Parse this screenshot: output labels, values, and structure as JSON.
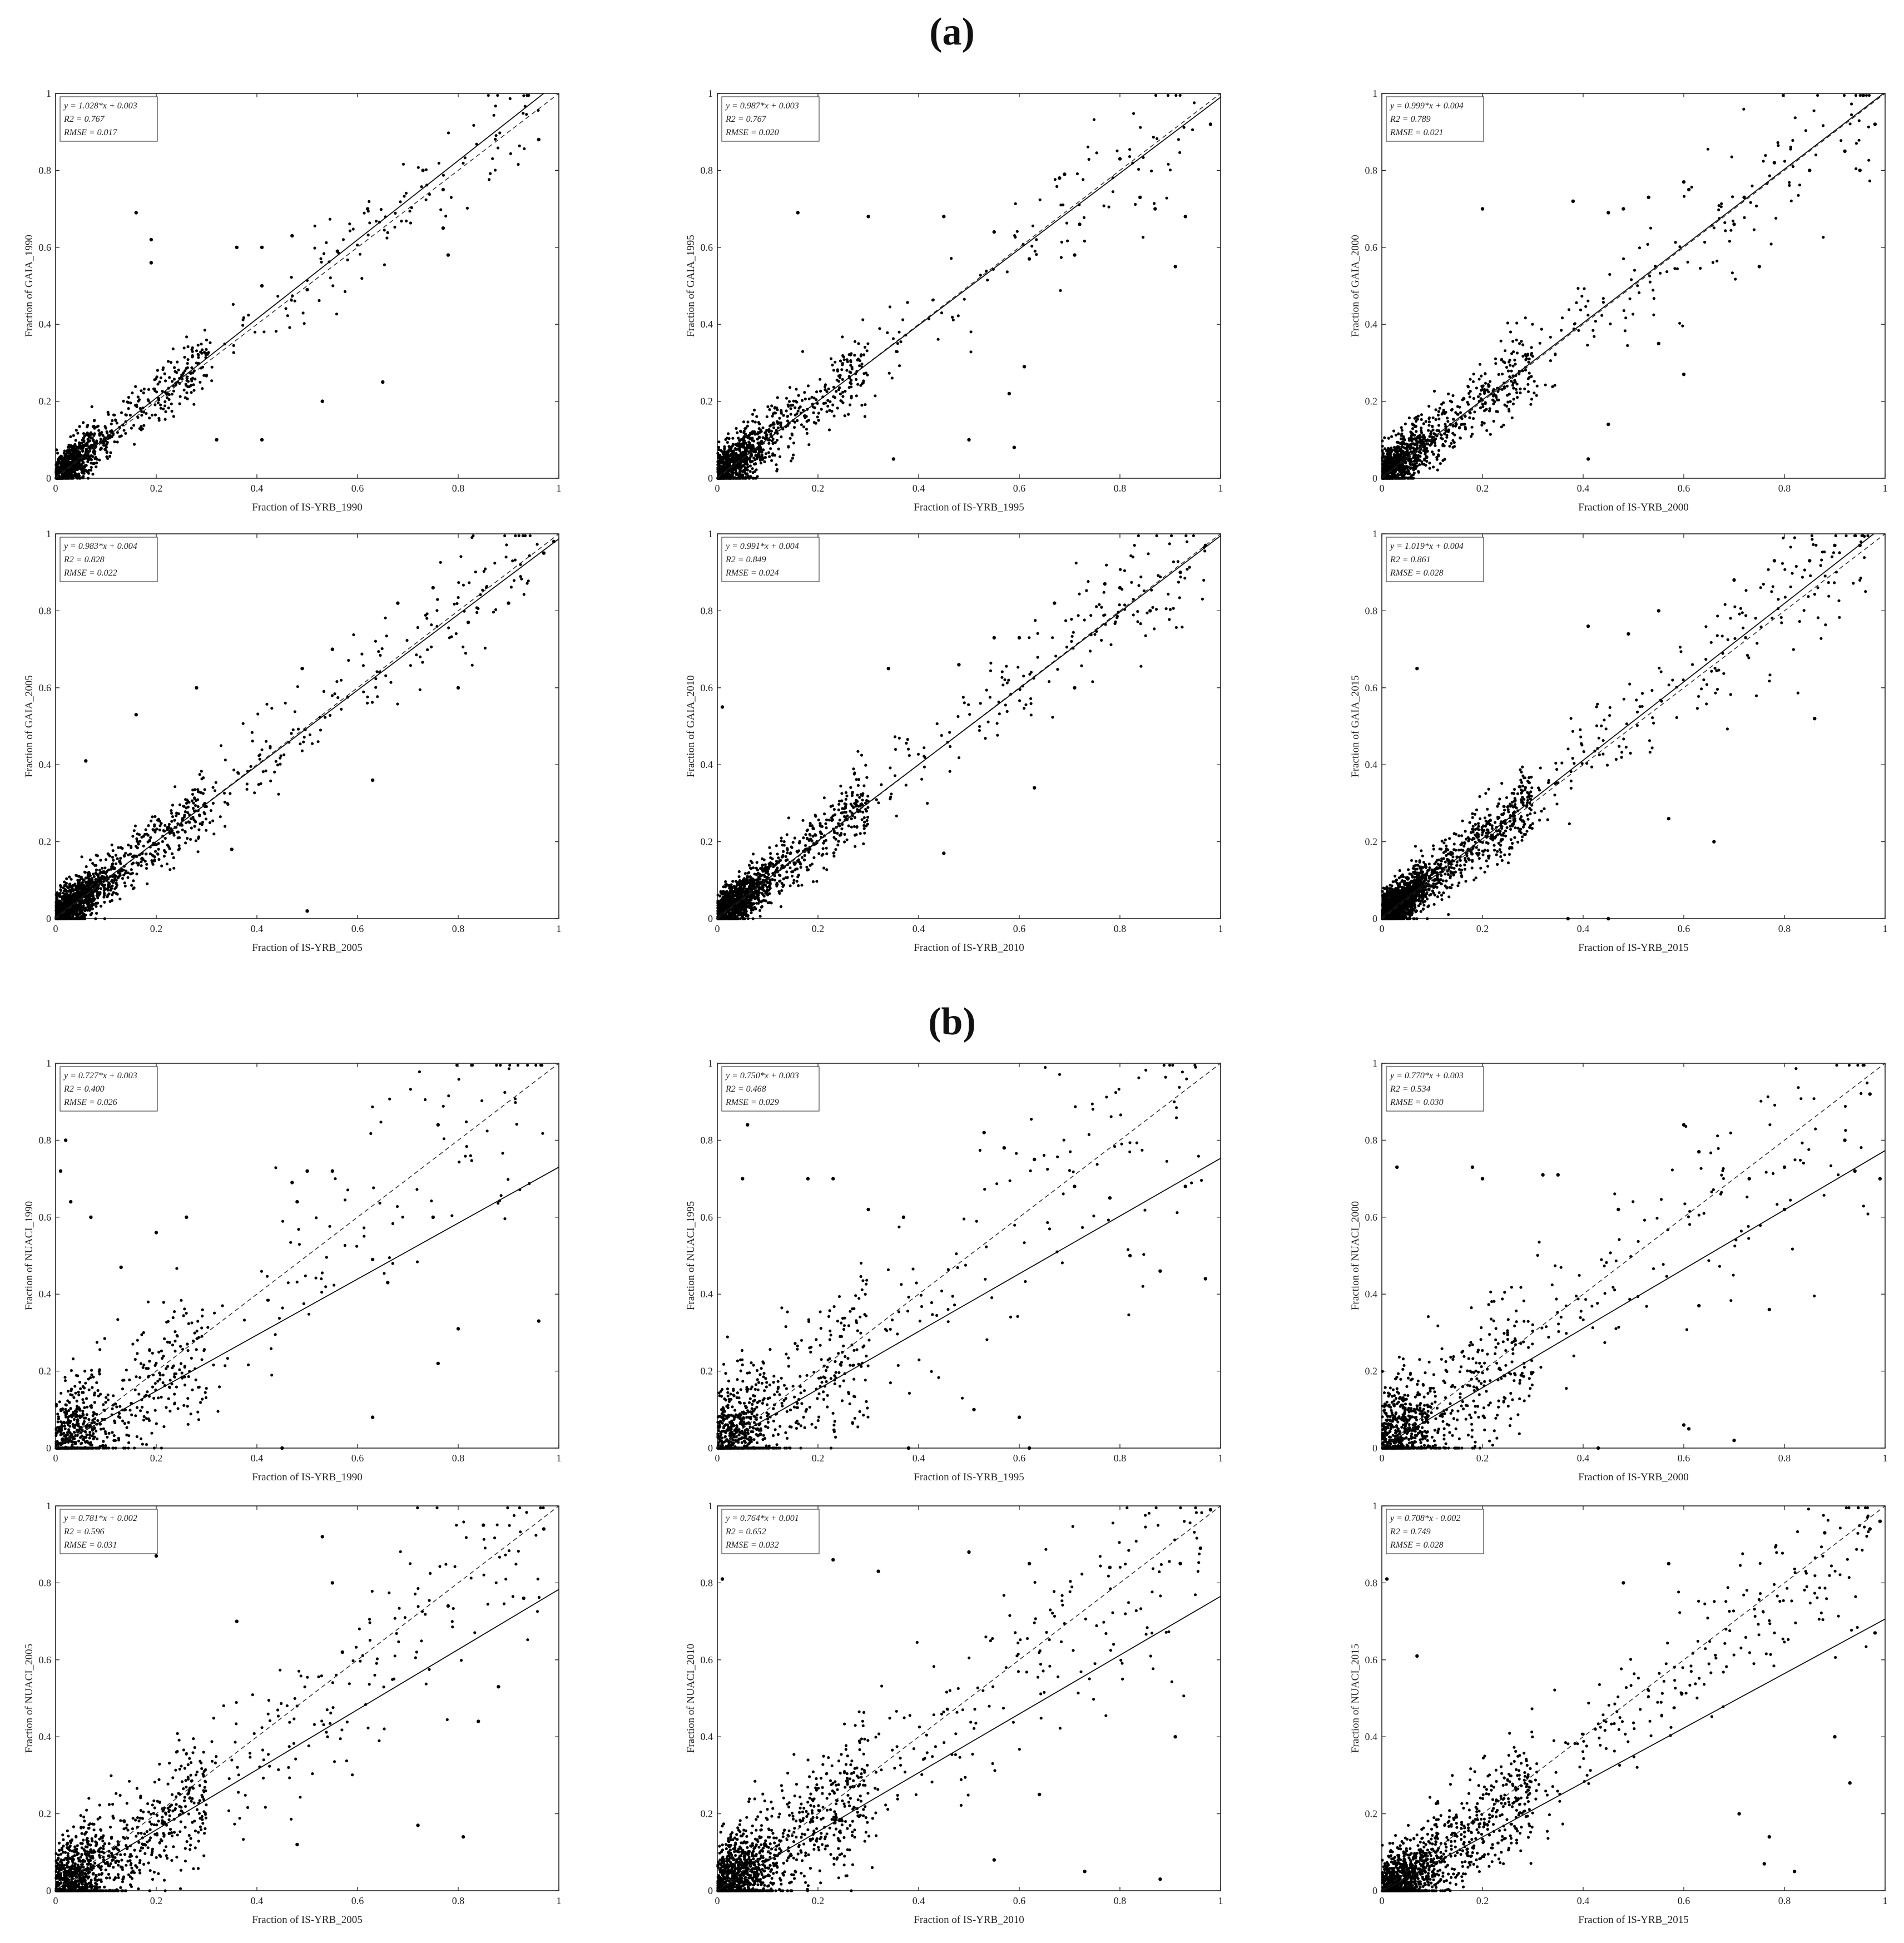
{
  "sections": [
    {
      "label": "(a)"
    },
    {
      "label": "(b)"
    }
  ],
  "chart_data": [
    {
      "type": "scatter",
      "section": 0,
      "panel": 0,
      "xlabel": "Fraction of IS-YRB_1990",
      "ylabel": "Fraction of GAIA_1990",
      "stats": [
        "y = 1.028*x + 0.003",
        "R2 = 0.767",
        "RMSE = 0.017"
      ],
      "slope": 1.028,
      "intercept": 0.003,
      "xlim": [
        0,
        1
      ],
      "ylim": [
        0,
        1
      ],
      "xticks": [
        "0",
        "0.2",
        "0.4",
        "0.6",
        "0.8",
        "1"
      ],
      "yticks": [
        "0",
        "0.2",
        "0.4",
        "0.6",
        "0.8",
        "1"
      ],
      "seed": 11,
      "spread": 0.07,
      "n": 1000,
      "points": [
        [
          0.16,
          0.69
        ],
        [
          0.19,
          0.62
        ],
        [
          0.19,
          0.56
        ],
        [
          0.36,
          0.6
        ],
        [
          0.41,
          0.6
        ],
        [
          0.41,
          0.5
        ],
        [
          0.47,
          0.63
        ],
        [
          0.32,
          0.1
        ],
        [
          0.41,
          0.1
        ],
        [
          0.53,
          0.2
        ],
        [
          0.65,
          0.25
        ],
        [
          0.73,
          0.8
        ],
        [
          0.77,
          0.75
        ],
        [
          0.77,
          0.65
        ],
        [
          0.78,
          0.58
        ],
        [
          0.96,
          0.88
        ],
        [
          0.62,
          0.7
        ],
        [
          0.56,
          0.59
        ],
        [
          0.5,
          0.49
        ]
      ]
    },
    {
      "type": "scatter",
      "section": 0,
      "panel": 1,
      "xlabel": "Fraction of IS-YRB_1995",
      "ylabel": "Fraction of GAIA_1995",
      "stats": [
        "y = 0.987*x + 0.003",
        "R2 = 0.767",
        "RMSE = 0.020"
      ],
      "slope": 0.987,
      "intercept": 0.003,
      "xlim": [
        0,
        1
      ],
      "ylim": [
        0,
        1
      ],
      "xticks": [
        "0",
        "0.2",
        "0.4",
        "0.6",
        "0.8",
        "1"
      ],
      "yticks": [
        "0",
        "0.2",
        "0.4",
        "0.6",
        "0.8",
        "1"
      ],
      "seed": 22,
      "spread": 0.09,
      "n": 1100,
      "points": [
        [
          0.16,
          0.69
        ],
        [
          0.3,
          0.68
        ],
        [
          0.45,
          0.68
        ],
        [
          0.55,
          0.64
        ],
        [
          0.62,
          0.57
        ],
        [
          0.68,
          0.78
        ],
        [
          0.69,
          0.79
        ],
        [
          0.71,
          0.58
        ],
        [
          0.72,
          0.66
        ],
        [
          0.8,
          0.83
        ],
        [
          0.84,
          0.73
        ],
        [
          0.87,
          0.7
        ],
        [
          0.91,
          0.55
        ],
        [
          0.93,
          0.68
        ],
        [
          0.98,
          0.92
        ],
        [
          0.58,
          0.22
        ],
        [
          0.5,
          0.1
        ],
        [
          0.61,
          0.29
        ],
        [
          0.59,
          0.08
        ],
        [
          0.35,
          0.05
        ]
      ]
    },
    {
      "type": "scatter",
      "section": 0,
      "panel": 2,
      "xlabel": "Fraction of IS-YRB_2000",
      "ylabel": "Fraction of GAIA_2000",
      "stats": [
        "y = 0.999*x + 0.004",
        "R2 = 0.789",
        "RMSE = 0.021"
      ],
      "slope": 0.999,
      "intercept": 0.004,
      "xlim": [
        0,
        1
      ],
      "ylim": [
        0,
        1
      ],
      "xticks": [
        "0",
        "0.2",
        "0.4",
        "0.6",
        "0.8",
        "1"
      ],
      "yticks": [
        "0",
        "0.2",
        "0.4",
        "0.6",
        "0.8",
        "1"
      ],
      "seed": 33,
      "spread": 0.09,
      "n": 1200,
      "points": [
        [
          0.2,
          0.7
        ],
        [
          0.38,
          0.72
        ],
        [
          0.45,
          0.69
        ],
        [
          0.48,
          0.7
        ],
        [
          0.53,
          0.73
        ],
        [
          0.6,
          0.77
        ],
        [
          0.61,
          0.75
        ],
        [
          0.7,
          0.66
        ],
        [
          0.72,
          0.73
        ],
        [
          0.78,
          0.82
        ],
        [
          0.85,
          0.8
        ],
        [
          0.92,
          0.85
        ],
        [
          0.95,
          0.8
        ],
        [
          0.98,
          0.92
        ],
        [
          0.45,
          0.14
        ],
        [
          0.6,
          0.27
        ],
        [
          0.41,
          0.05
        ],
        [
          0.55,
          0.35
        ],
        [
          0.75,
          0.55
        ]
      ]
    },
    {
      "type": "scatter",
      "section": 0,
      "panel": 3,
      "xlabel": "Fraction of IS-YRB_2005",
      "ylabel": "Fraction of GAIA_2005",
      "stats": [
        "y = 0.983*x + 0.004",
        "R2 = 0.828",
        "RMSE = 0.022"
      ],
      "slope": 0.983,
      "intercept": 0.004,
      "xlim": [
        0,
        1
      ],
      "ylim": [
        0,
        1
      ],
      "xticks": [
        "0",
        "0.2",
        "0.4",
        "0.6",
        "0.8",
        "1"
      ],
      "yticks": [
        "0",
        "0.2",
        "0.4",
        "0.6",
        "0.8",
        "1"
      ],
      "seed": 44,
      "spread": 0.075,
      "n": 1500,
      "points": [
        [
          0.06,
          0.41
        ],
        [
          0.16,
          0.53
        ],
        [
          0.28,
          0.6
        ],
        [
          0.49,
          0.65
        ],
        [
          0.55,
          0.7
        ],
        [
          0.68,
          0.82
        ],
        [
          0.75,
          0.86
        ],
        [
          0.82,
          0.77
        ],
        [
          0.9,
          0.82
        ],
        [
          0.97,
          0.95
        ],
        [
          0.99,
          0.98
        ],
        [
          0.5,
          0.02
        ],
        [
          0.35,
          0.18
        ],
        [
          0.63,
          0.36
        ],
        [
          0.8,
          0.6
        ]
      ]
    },
    {
      "type": "scatter",
      "section": 0,
      "panel": 4,
      "xlabel": "Fraction of IS-YRB_2010",
      "ylabel": "Fraction of GAIA_2010",
      "stats": [
        "y = 0.991*x + 0.004",
        "R2 = 0.849",
        "RMSE = 0.024"
      ],
      "slope": 0.991,
      "intercept": 0.004,
      "xlim": [
        0,
        1
      ],
      "ylim": [
        0,
        1
      ],
      "xticks": [
        "0",
        "0.2",
        "0.4",
        "0.6",
        "0.8",
        "1"
      ],
      "yticks": [
        "0",
        "0.2",
        "0.4",
        "0.6",
        "0.8",
        "1"
      ],
      "seed": 55,
      "spread": 0.075,
      "n": 1600,
      "points": [
        [
          0.01,
          0.55
        ],
        [
          0.34,
          0.65
        ],
        [
          0.48,
          0.66
        ],
        [
          0.55,
          0.73
        ],
        [
          0.6,
          0.73
        ],
        [
          0.67,
          0.82
        ],
        [
          0.77,
          0.87
        ],
        [
          0.8,
          0.86
        ],
        [
          0.92,
          0.9
        ],
        [
          0.97,
          0.97
        ],
        [
          0.63,
          0.34
        ],
        [
          0.71,
          0.6
        ],
        [
          0.45,
          0.17
        ],
        [
          0.86,
          0.8
        ]
      ]
    },
    {
      "type": "scatter",
      "section": 0,
      "panel": 5,
      "xlabel": "Fraction of IS-YRB_2015",
      "ylabel": "Fraction of GAIA_2015",
      "stats": [
        "y = 1.019*x + 0.004",
        "R2 = 0.861",
        "RMSE = 0.028"
      ],
      "slope": 1.019,
      "intercept": 0.004,
      "xlim": [
        0,
        1
      ],
      "ylim": [
        0,
        1
      ],
      "xticks": [
        "0",
        "0.2",
        "0.4",
        "0.6",
        "0.8",
        "1"
      ],
      "yticks": [
        "0",
        "0.2",
        "0.4",
        "0.6",
        "0.8",
        "1"
      ],
      "seed": 66,
      "spread": 0.075,
      "n": 2000,
      "points": [
        [
          0.07,
          0.65
        ],
        [
          0.41,
          0.76
        ],
        [
          0.49,
          0.74
        ],
        [
          0.55,
          0.8
        ],
        [
          0.7,
          0.88
        ],
        [
          0.78,
          0.93
        ],
        [
          0.85,
          0.93
        ],
        [
          0.9,
          0.97
        ],
        [
          0.95,
          0.97
        ],
        [
          0.57,
          0.26
        ],
        [
          0.45,
          0.0
        ],
        [
          0.37,
          0.0
        ],
        [
          0.66,
          0.2
        ],
        [
          0.86,
          0.52
        ]
      ]
    },
    {
      "type": "scatter",
      "section": 1,
      "panel": 0,
      "xlabel": "Fraction of IS-YRB_1990",
      "ylabel": "Fraction of NUACI_1990",
      "stats": [
        "y = 0.727*x + 0.003",
        "R2 = 0.400",
        "RMSE = 0.026"
      ],
      "slope": 0.727,
      "intercept": 0.003,
      "xlim": [
        0,
        1
      ],
      "ylim": [
        0,
        1
      ],
      "xticks": [
        "0",
        "0.2",
        "0.4",
        "0.6",
        "0.8",
        "1"
      ],
      "yticks": [
        "0",
        "0.2",
        "0.4",
        "0.6",
        "0.8",
        "1"
      ],
      "seed": 77,
      "spread": 0.16,
      "n": 900,
      "points": [
        [
          0.01,
          0.72
        ],
        [
          0.02,
          0.8
        ],
        [
          0.03,
          0.64
        ],
        [
          0.07,
          0.6
        ],
        [
          0.13,
          0.47
        ],
        [
          0.2,
          0.56
        ],
        [
          0.26,
          0.6
        ],
        [
          0.47,
          0.69
        ],
        [
          0.48,
          0.64
        ],
        [
          0.5,
          0.72
        ],
        [
          0.55,
          0.72
        ],
        [
          0.63,
          0.49
        ],
        [
          0.66,
          0.43
        ],
        [
          0.75,
          0.6
        ],
        [
          0.76,
          0.84
        ],
        [
          0.8,
          0.31
        ],
        [
          0.76,
          0.22
        ],
        [
          0.96,
          0.33
        ],
        [
          0.63,
          0.08
        ],
        [
          0.45,
          0.0
        ]
      ]
    },
    {
      "type": "scatter",
      "section": 1,
      "panel": 1,
      "xlabel": "Fraction of IS-YRB_1995",
      "ylabel": "Fraction of NUACI_1995",
      "stats": [
        "y = 0.750*x + 0.003",
        "R2 = 0.468",
        "RMSE = 0.029"
      ],
      "slope": 0.75,
      "intercept": 0.003,
      "xlim": [
        0,
        1
      ],
      "ylim": [
        0,
        1
      ],
      "xticks": [
        "0",
        "0.2",
        "0.4",
        "0.6",
        "0.8",
        "1"
      ],
      "yticks": [
        "0",
        "0.2",
        "0.4",
        "0.6",
        "0.8",
        "1"
      ],
      "seed": 88,
      "spread": 0.16,
      "n": 1000,
      "points": [
        [
          0.06,
          0.84
        ],
        [
          0.05,
          0.7
        ],
        [
          0.18,
          0.7
        ],
        [
          0.23,
          0.7
        ],
        [
          0.3,
          0.62
        ],
        [
          0.37,
          0.6
        ],
        [
          0.53,
          0.82
        ],
        [
          0.57,
          0.78
        ],
        [
          0.63,
          0.75
        ],
        [
          0.71,
          0.68
        ],
        [
          0.78,
          0.65
        ],
        [
          0.82,
          0.5
        ],
        [
          0.88,
          0.46
        ],
        [
          0.93,
          0.68
        ],
        [
          0.97,
          0.44
        ],
        [
          0.51,
          0.1
        ],
        [
          0.6,
          0.08
        ],
        [
          0.62,
          0.0
        ],
        [
          0.38,
          0.0
        ]
      ]
    },
    {
      "type": "scatter",
      "section": 1,
      "panel": 2,
      "xlabel": "Fraction of IS-YRB_2000",
      "ylabel": "Fraction of NUACI_2000",
      "stats": [
        "y = 0.770*x + 0.003",
        "R2 = 0.534",
        "RMSE = 0.030"
      ],
      "slope": 0.77,
      "intercept": 0.003,
      "xlim": [
        0,
        1
      ],
      "ylim": [
        0,
        1
      ],
      "xticks": [
        "0",
        "0.2",
        "0.4",
        "0.6",
        "0.8",
        "1"
      ],
      "yticks": [
        "0",
        "0.2",
        "0.4",
        "0.6",
        "0.8",
        "1"
      ],
      "seed": 99,
      "spread": 0.15,
      "n": 1100,
      "points": [
        [
          0.03,
          0.73
        ],
        [
          0.18,
          0.73
        ],
        [
          0.2,
          0.7
        ],
        [
          0.32,
          0.71
        ],
        [
          0.35,
          0.71
        ],
        [
          0.47,
          0.62
        ],
        [
          0.6,
          0.84
        ],
        [
          0.63,
          0.77
        ],
        [
          0.73,
          0.7
        ],
        [
          0.8,
          0.73
        ],
        [
          0.8,
          0.62
        ],
        [
          0.92,
          0.8
        ],
        [
          0.94,
          0.72
        ],
        [
          0.97,
          0.92
        ],
        [
          0.99,
          0.7
        ],
        [
          0.6,
          0.06
        ],
        [
          0.61,
          0.05
        ],
        [
          0.7,
          0.02
        ],
        [
          0.43,
          0.0
        ],
        [
          0.63,
          0.37
        ],
        [
          0.77,
          0.36
        ]
      ]
    },
    {
      "type": "scatter",
      "section": 1,
      "panel": 3,
      "xlabel": "Fraction of IS-YRB_2005",
      "ylabel": "Fraction of NUACI_2005",
      "stats": [
        "y = 0.781*x + 0.002",
        "R2 = 0.596",
        "RMSE = 0.031"
      ],
      "slope": 0.781,
      "intercept": 0.002,
      "xlim": [
        0,
        1
      ],
      "ylim": [
        0,
        1
      ],
      "xticks": [
        "0",
        "0.2",
        "0.4",
        "0.6",
        "0.8",
        "1"
      ],
      "yticks": [
        "0",
        "0.2",
        "0.4",
        "0.6",
        "0.8",
        "1"
      ],
      "seed": 111,
      "spread": 0.13,
      "n": 1500,
      "points": [
        [
          0.2,
          0.87
        ],
        [
          0.53,
          0.92
        ],
        [
          0.55,
          0.8
        ],
        [
          0.85,
          0.95
        ],
        [
          0.97,
          0.94
        ],
        [
          0.93,
          0.76
        ],
        [
          0.78,
          0.74
        ],
        [
          0.72,
          0.17
        ],
        [
          0.81,
          0.14
        ],
        [
          0.84,
          0.44
        ],
        [
          0.88,
          0.53
        ],
        [
          0.57,
          0.62
        ],
        [
          0.36,
          0.7
        ],
        [
          0.48,
          0.12
        ]
      ]
    },
    {
      "type": "scatter",
      "section": 1,
      "panel": 4,
      "xlabel": "Fraction of IS-YRB_2010",
      "ylabel": "Fraction of NUACI_2010",
      "stats": [
        "y = 0.764*x + 0.001",
        "R2 = 0.652",
        "RMSE = 0.032"
      ],
      "slope": 0.764,
      "intercept": 0.001,
      "xlim": [
        0,
        1
      ],
      "ylim": [
        0,
        1
      ],
      "xticks": [
        "0",
        "0.2",
        "0.4",
        "0.6",
        "0.8",
        "1"
      ],
      "yticks": [
        "0",
        "0.2",
        "0.4",
        "0.6",
        "0.8",
        "1"
      ],
      "seed": 122,
      "spread": 0.13,
      "n": 1700,
      "points": [
        [
          0.01,
          0.81
        ],
        [
          0.23,
          0.86
        ],
        [
          0.32,
          0.83
        ],
        [
          0.5,
          0.88
        ],
        [
          0.62,
          0.85
        ],
        [
          0.78,
          0.84
        ],
        [
          0.92,
          0.85
        ],
        [
          0.98,
          0.99
        ],
        [
          0.96,
          0.89
        ],
        [
          0.55,
          0.08
        ],
        [
          0.73,
          0.05
        ],
        [
          0.88,
          0.03
        ],
        [
          0.91,
          0.4
        ],
        [
          0.64,
          0.25
        ]
      ]
    },
    {
      "type": "scatter",
      "section": 1,
      "panel": 5,
      "xlabel": "Fraction of IS-YRB_2015",
      "ylabel": "Fraction of NUACI_2015",
      "stats": [
        "y = 0.708*x - 0.002",
        "R2 = 0.749",
        "RMSE = 0.028"
      ],
      "slope": 0.708,
      "intercept": -0.002,
      "xlim": [
        0,
        1
      ],
      "ylim": [
        0,
        1
      ],
      "xticks": [
        "0",
        "0.2",
        "0.4",
        "0.6",
        "0.8",
        "1"
      ],
      "yticks": [
        "0",
        "0.2",
        "0.4",
        "0.6",
        "0.8",
        "1"
      ],
      "seed": 133,
      "spread": 0.1,
      "n": 1800,
      "points": [
        [
          0.01,
          0.81
        ],
        [
          0.07,
          0.61
        ],
        [
          0.48,
          0.8
        ],
        [
          0.57,
          0.85
        ],
        [
          0.88,
          0.93
        ],
        [
          0.97,
          0.94
        ],
        [
          0.99,
          0.96
        ],
        [
          0.93,
          0.28
        ],
        [
          0.76,
          0.07
        ],
        [
          0.82,
          0.05
        ],
        [
          0.77,
          0.14
        ],
        [
          0.71,
          0.2
        ],
        [
          0.9,
          0.4
        ],
        [
          0.98,
          0.67
        ]
      ]
    }
  ]
}
